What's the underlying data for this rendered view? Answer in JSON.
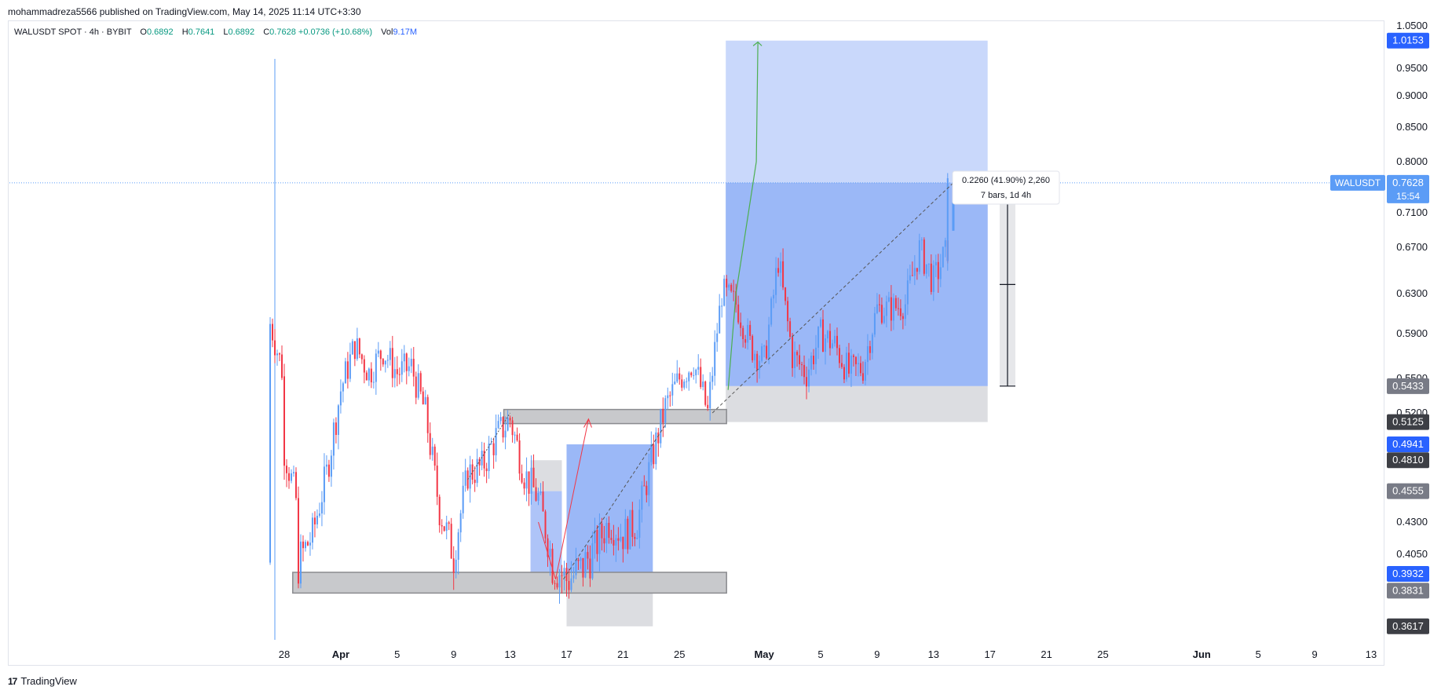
{
  "header": {
    "published": "mohammadreza5566 published on TradingView.com, May 14, 2025 11:14 UTC+3:30"
  },
  "legend": {
    "symbol": "WALUSDT SPOT · 4h · BYBIT",
    "open_label": "O",
    "open": "0.6892",
    "high_label": "H",
    "high": "0.7641",
    "low_label": "L",
    "low": "0.6892",
    "close_label": "C",
    "close": "0.7628",
    "change": "+0.0736 (+10.68%)",
    "vol_label": "Vol",
    "vol": "9.17M"
  },
  "brand": {
    "logo": "17",
    "name": "TradingView"
  },
  "colors": {
    "up": "#5b9cf6",
    "down": "#f23645",
    "target_zone": "#c9d8fb",
    "entry_zone": "#9bb8f7",
    "stop_zone": "#dcdde1",
    "box_fill": "#c8c9cc",
    "box_border": "#8a8b8f",
    "tag_blue": "#2962ff",
    "tag_dark": "#3d3f45",
    "tag_grey": "#787b86",
    "symbol_tag": "#5b9cf6",
    "arrow_green": "#4caf50"
  },
  "chart_data": {
    "type": "candlestick",
    "symbol": "WALUSDT",
    "timeframe": "4h",
    "ylim": [
      0.355,
      1.05
    ],
    "y_ticks": [
      "1.0500",
      "0.9500",
      "0.9000",
      "0.8500",
      "0.8000",
      "0.7100",
      "0.6700",
      "0.6300",
      "0.5900",
      "0.5500",
      "0.5200",
      "0.4300",
      "0.4050"
    ],
    "x_ticks": [
      {
        "date": "2025-03-28",
        "label": "28"
      },
      {
        "date": "2025-04-01",
        "label": "Apr"
      },
      {
        "date": "2025-04-05",
        "label": "5"
      },
      {
        "date": "2025-04-09",
        "label": "9"
      },
      {
        "date": "2025-04-13",
        "label": "13"
      },
      {
        "date": "2025-04-17",
        "label": "17"
      },
      {
        "date": "2025-04-21",
        "label": "21"
      },
      {
        "date": "2025-04-25",
        "label": "25"
      },
      {
        "date": "2025-05-01",
        "label": "May"
      },
      {
        "date": "2025-05-05",
        "label": "5"
      },
      {
        "date": "2025-05-09",
        "label": "9"
      },
      {
        "date": "2025-05-13",
        "label": "13"
      },
      {
        "date": "2025-05-17",
        "label": "17"
      },
      {
        "date": "2025-05-21",
        "label": "21"
      },
      {
        "date": "2025-05-25",
        "label": "25"
      },
      {
        "date": "2025-06-01",
        "label": "Jun"
      },
      {
        "date": "2025-06-05",
        "label": "5"
      },
      {
        "date": "2025-06-09",
        "label": "9"
      },
      {
        "date": "2025-06-13",
        "label": "13"
      }
    ],
    "price_path": [
      [
        "2025-03-27",
        0.4
      ],
      [
        "2025-03-27",
        0.6
      ],
      [
        "2025-03-28",
        0.55
      ],
      [
        "2025-03-28",
        0.49
      ],
      [
        "2025-03-29",
        0.44
      ],
      [
        "2025-03-29",
        0.4
      ],
      [
        "2025-03-30",
        0.42
      ],
      [
        "2025-03-31",
        0.47
      ],
      [
        "2025-04-01",
        0.54
      ],
      [
        "2025-04-02",
        0.58
      ],
      [
        "2025-04-03",
        0.555
      ],
      [
        "2025-04-04",
        0.575
      ],
      [
        "2025-04-05",
        0.555
      ],
      [
        "2025-04-06",
        0.56
      ],
      [
        "2025-04-07",
        0.52
      ],
      [
        "2025-04-08",
        0.44
      ],
      [
        "2025-04-09",
        0.405
      ],
      [
        "2025-04-10",
        0.47
      ],
      [
        "2025-04-11",
        0.475
      ],
      [
        "2025-04-12",
        0.5
      ],
      [
        "2025-04-13",
        0.515
      ],
      [
        "2025-04-14",
        0.47
      ],
      [
        "2025-04-15",
        0.45
      ],
      [
        "2025-04-16",
        0.4
      ],
      [
        "2025-04-17",
        0.39
      ],
      [
        "2025-04-18",
        0.395
      ],
      [
        "2025-04-19",
        0.41
      ],
      [
        "2025-04-20",
        0.43
      ],
      [
        "2025-04-21",
        0.42
      ],
      [
        "2025-04-22",
        0.43
      ],
      [
        "2025-04-23",
        0.48
      ],
      [
        "2025-04-24",
        0.525
      ],
      [
        "2025-04-25",
        0.55
      ],
      [
        "2025-04-26",
        0.565
      ],
      [
        "2025-04-27",
        0.52
      ],
      [
        "2025-04-28",
        0.63
      ],
      [
        "2025-04-29",
        0.62
      ],
      [
        "2025-04-30",
        0.58
      ],
      [
        "2025-05-01",
        0.565
      ],
      [
        "2025-05-02",
        0.66
      ],
      [
        "2025-05-03",
        0.57
      ],
      [
        "2025-05-04",
        0.555
      ],
      [
        "2025-05-05",
        0.59
      ],
      [
        "2025-05-06",
        0.58
      ],
      [
        "2025-05-07",
        0.555
      ],
      [
        "2025-05-08",
        0.56
      ],
      [
        "2025-05-09",
        0.615
      ],
      [
        "2025-05-10",
        0.615
      ],
      [
        "2025-05-11",
        0.62
      ],
      [
        "2025-05-12",
        0.67
      ],
      [
        "2025-05-13",
        0.64
      ],
      [
        "2025-05-14",
        0.67
      ],
      [
        "2025-05-14",
        0.7628
      ]
    ],
    "last_candle": {
      "date": "2025-05-14",
      "open": 0.6892,
      "high": 0.7641,
      "low": 0.6892,
      "close": 0.7628
    },
    "price_tags": [
      {
        "text": "1.0153",
        "value": 1.0153,
        "style": "blue"
      },
      {
        "text": "0.5433",
        "value": 0.5433,
        "style": "grey"
      },
      {
        "text": "0.5125",
        "value": 0.5125,
        "style": "dark"
      },
      {
        "text": "0.4941",
        "value": 0.4941,
        "style": "blue"
      },
      {
        "text": "0.4810",
        "value": 0.481,
        "style": "dark"
      },
      {
        "text": "0.4555",
        "value": 0.4555,
        "style": "grey"
      },
      {
        "text": "0.3932",
        "value": 0.3932,
        "style": "blue"
      },
      {
        "text": "0.3831",
        "value": 0.3831,
        "style": "grey"
      },
      {
        "text": "0.3617",
        "value": 0.3617,
        "style": "dark"
      }
    ],
    "symbol_tag": {
      "name": "WALUSDT",
      "price": "0.7628",
      "countdown": "15:54"
    },
    "measure_label": {
      "line1": "0.2260 (41.90%) 2,260",
      "line2": "7 bars, 1d 4h"
    },
    "zones": {
      "long_position": {
        "from": "2025-04-28",
        "to": "2025-05-17",
        "entry": 0.5433,
        "target": 1.0153,
        "stop": 0.5125
      },
      "small_position": {
        "from": "2025-04-17",
        "to": "2025-04-23",
        "entry": 0.3932,
        "target": 0.4941,
        "stop": 0.3617
      },
      "small_position_2": {
        "from": "2025-04-14",
        "to": "2025-04-17",
        "entry": 0.4555,
        "top": 0.481,
        "bottom": 0.3932
      },
      "support_box": {
        "from": "2025-03-29",
        "to": "2025-04-28",
        "low": 0.3831,
        "high": 0.3932
      },
      "resistance_box": {
        "from": "2025-04-13",
        "to": "2025-04-28",
        "low": 0.5125,
        "high": 0.523
      }
    }
  }
}
